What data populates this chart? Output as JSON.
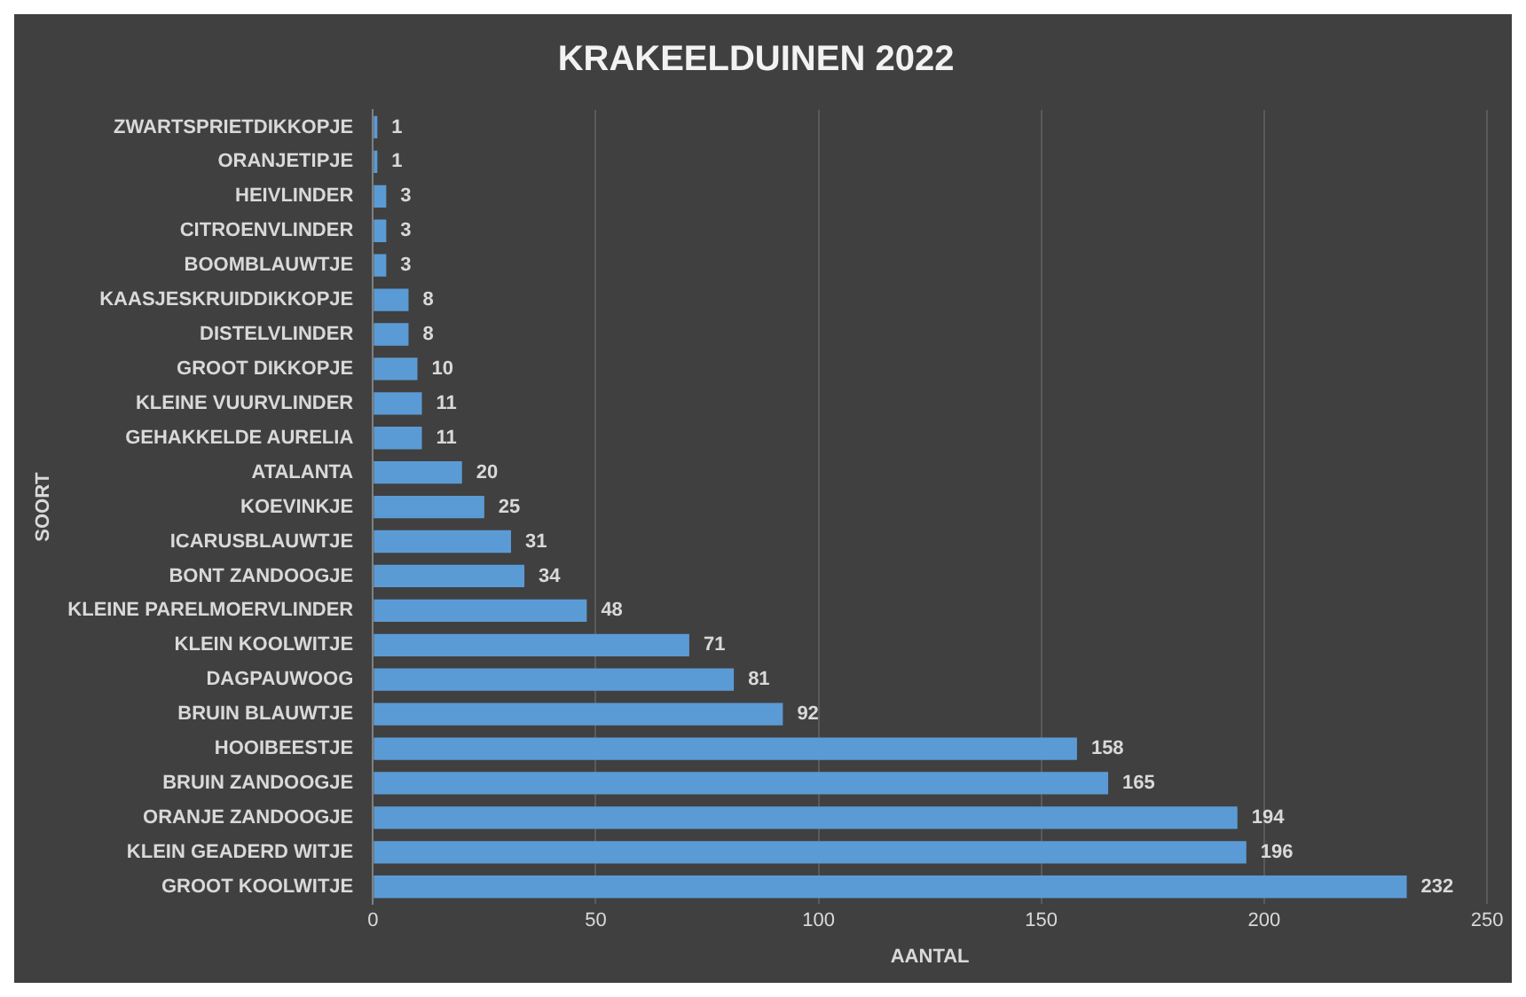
{
  "chart_data": {
    "type": "bar",
    "orientation": "horizontal",
    "title": "KRAKEELDUINEN 2022",
    "xlabel": "AANTAL",
    "ylabel": "SOORT",
    "categories": [
      "ZWARTSPRIETDIKKOPJE",
      "ORANJETIPJE",
      "HEIVLINDER",
      "CITROENVLINDER",
      "BOOMBLAUWTJE",
      "KAASJESKRUIDDIKKOPJE",
      "DISTELVLINDER",
      "GROOT DIKKOPJE",
      "KLEINE VUURVLINDER",
      "GEHAKKELDE AURELIA",
      "ATALANTA",
      "KOEVINKJE",
      "ICARUSBLAUWTJE",
      "BONT ZANDOOGJE",
      "KLEINE PARELMOERVLINDER",
      "KLEIN KOOLWITJE",
      "DAGPAUWOOG",
      "BRUIN BLAUWTJE",
      "HOOIBEESTJE",
      "BRUIN ZANDOOGJE",
      "ORANJE ZANDOOGJE",
      "KLEIN GEADERD WITJE",
      "GROOT KOOLWITJE"
    ],
    "values": [
      1,
      1,
      3,
      3,
      3,
      8,
      8,
      10,
      11,
      11,
      20,
      25,
      31,
      34,
      48,
      71,
      81,
      92,
      158,
      165,
      194,
      196,
      232
    ],
    "color": "#5b9bd5",
    "xlim": [
      0,
      250
    ],
    "xticks": [
      0,
      50,
      100,
      150,
      200,
      250
    ],
    "grid": "x",
    "data_labels": true,
    "legend": false
  }
}
